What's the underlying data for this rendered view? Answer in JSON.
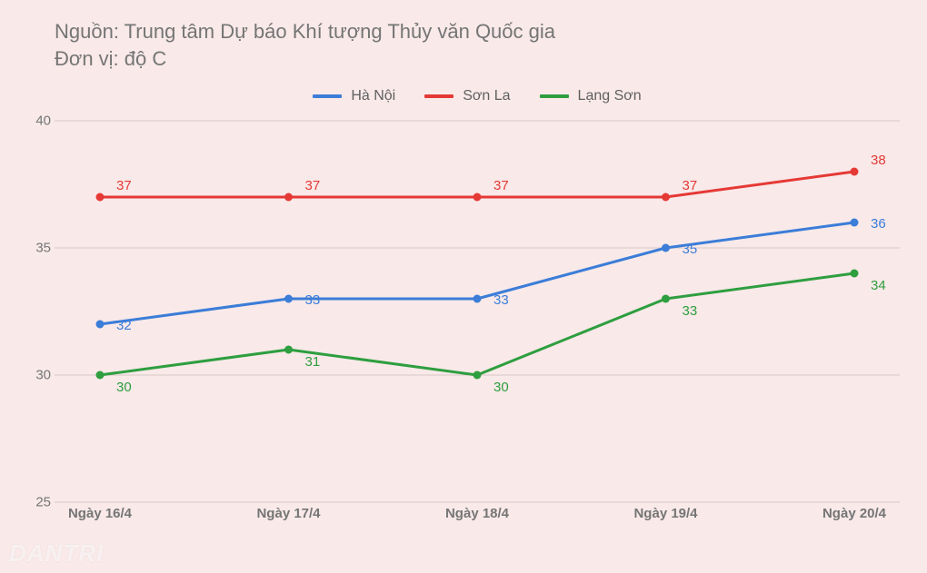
{
  "background_color": "#f9e9e9",
  "grid_color": "#d6c7c7",
  "text_color": "#757575",
  "titles": [
    "Nguồn: Trung tâm Dự báo Khí tượng Thủy văn Quốc gia",
    "Đơn vị: độ C"
  ],
  "watermark": "DANTRI",
  "chart": {
    "type": "line",
    "ylim": [
      25,
      40
    ],
    "ytick_step": 5,
    "yticks": [
      25,
      30,
      35,
      40
    ],
    "categories": [
      "Ngày 16/4",
      "Ngày 17/4",
      "Ngày 18/4",
      "Ngày 19/4",
      "Ngày 20/4"
    ],
    "label_fontsize": 15,
    "title_fontsize": 22,
    "line_width": 3,
    "point_radius": 4.5,
    "series": [
      {
        "name": "Hà Nội",
        "color": "#3b7dd8",
        "values": [
          32,
          33,
          33,
          35,
          36
        ],
        "label_dx": 18,
        "label_dy": 6
      },
      {
        "name": "Sơn La",
        "color": "#e53935",
        "values": [
          37,
          37,
          37,
          37,
          38
        ],
        "label_dx": 18,
        "label_dy": -8
      },
      {
        "name": "Lạng Sơn",
        "color": "#2e9e3f",
        "values": [
          30,
          31,
          30,
          33,
          34
        ],
        "label_dx": 18,
        "label_dy": 18
      }
    ]
  }
}
